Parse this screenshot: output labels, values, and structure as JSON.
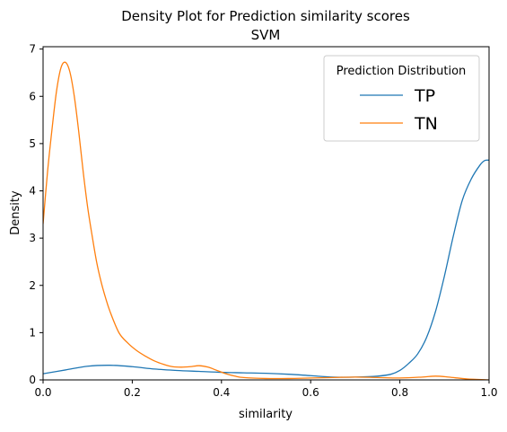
{
  "chart_data": {
    "type": "line",
    "title": "Density Plot for Prediction similarity scores",
    "subtitle": "SVM",
    "xlabel": "similarity",
    "ylabel": "Density",
    "xlim": [
      0,
      1
    ],
    "ylim": [
      0,
      7.05
    ],
    "x_ticks": [
      "0.0",
      "0.2",
      "0.4",
      "0.6",
      "0.8",
      "1.0"
    ],
    "y_ticks": [
      "0",
      "1",
      "2",
      "3",
      "4",
      "5",
      "6",
      "7"
    ],
    "grid": false,
    "legend": {
      "title": "Prediction Distribution",
      "position": "top-right"
    },
    "series": [
      {
        "name": "TP",
        "color": "#1f77b4",
        "x": [
          0,
          0.05,
          0.1,
          0.15,
          0.2,
          0.25,
          0.3,
          0.35,
          0.4,
          0.45,
          0.5,
          0.55,
          0.6,
          0.65,
          0.7,
          0.75,
          0.78,
          0.8,
          0.82,
          0.84,
          0.86,
          0.88,
          0.9,
          0.92,
          0.94,
          0.96,
          0.98,
          0.99,
          1.0
        ],
        "y": [
          0.13,
          0.21,
          0.29,
          0.31,
          0.28,
          0.23,
          0.2,
          0.18,
          0.16,
          0.15,
          0.14,
          0.12,
          0.09,
          0.06,
          0.06,
          0.08,
          0.12,
          0.2,
          0.35,
          0.55,
          0.9,
          1.45,
          2.2,
          3.05,
          3.8,
          4.25,
          4.55,
          4.64,
          4.65
        ]
      },
      {
        "name": "TN",
        "color": "#ff7f0e",
        "x": [
          0,
          0.01,
          0.02,
          0.03,
          0.04,
          0.05,
          0.06,
          0.07,
          0.08,
          0.09,
          0.1,
          0.11,
          0.12,
          0.13,
          0.14,
          0.15,
          0.17,
          0.19,
          0.21,
          0.23,
          0.25,
          0.27,
          0.29,
          0.31,
          0.33,
          0.35,
          0.37,
          0.39,
          0.41,
          0.43,
          0.45,
          0.5,
          0.55,
          0.6,
          0.65,
          0.7,
          0.75,
          0.8,
          0.85,
          0.88,
          0.91,
          0.95,
          1.0
        ],
        "y": [
          3.3,
          4.4,
          5.3,
          6.1,
          6.6,
          6.72,
          6.52,
          6.0,
          5.25,
          4.4,
          3.65,
          3.05,
          2.5,
          2.08,
          1.74,
          1.45,
          1.0,
          0.78,
          0.62,
          0.5,
          0.4,
          0.33,
          0.28,
          0.27,
          0.28,
          0.3,
          0.27,
          0.2,
          0.13,
          0.08,
          0.05,
          0.03,
          0.03,
          0.04,
          0.05,
          0.06,
          0.05,
          0.04,
          0.06,
          0.08,
          0.06,
          0.02,
          0.0
        ]
      }
    ]
  }
}
